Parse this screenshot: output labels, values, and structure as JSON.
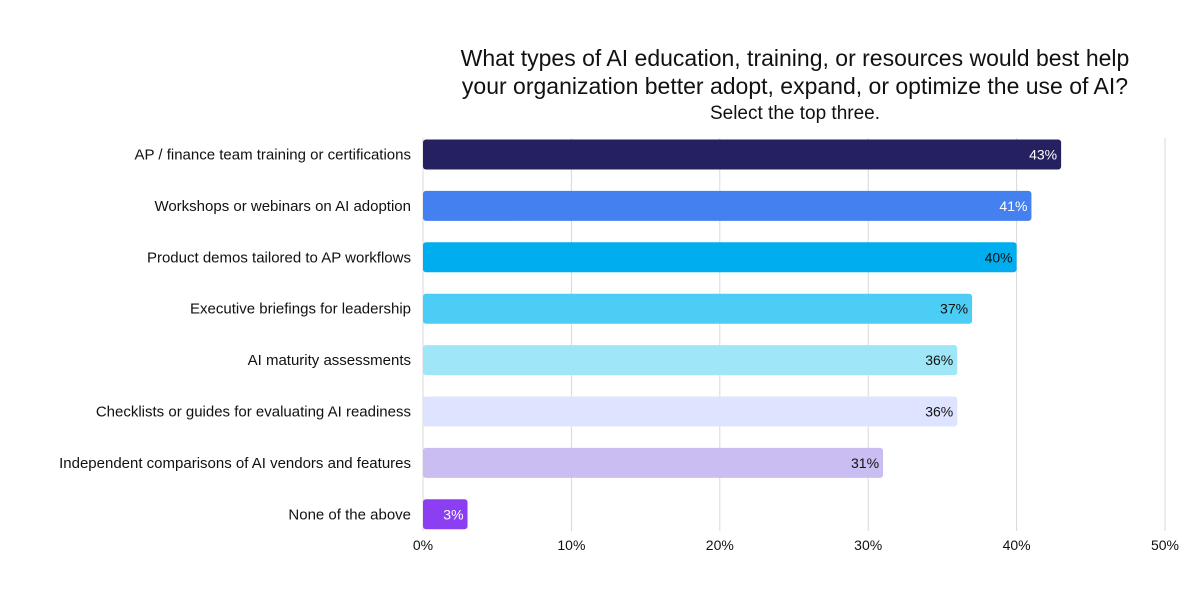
{
  "chart_data": {
    "type": "bar",
    "orientation": "horizontal",
    "title_lines": [
      "What types of AI education, training, or resources would best help",
      "your organization better adopt, expand, or optimize the use of AI?"
    ],
    "subtitle": "Select the top three.",
    "categories": [
      "AP / finance team training or certifications",
      "Workshops or webinars on AI adoption",
      "Product demos tailored to AP workflows",
      "Executive briefings for leadership",
      "AI maturity assessments",
      "Checklists or guides for evaluating AI readiness",
      "Independent comparisons of AI vendors and features",
      "None of the above"
    ],
    "values": [
      43,
      41,
      40,
      37,
      36,
      36,
      31,
      3
    ],
    "data_labels": [
      "43%",
      "41%",
      "40%",
      "37%",
      "36%",
      "36%",
      "31%",
      "3%"
    ],
    "bar_colors": [
      "#252060",
      "#4480F0",
      "#00AEEF",
      "#4CCDF5",
      "#9FE6F8",
      "#DEE4FF",
      "#CABDF2",
      "#8B3FF0"
    ],
    "label_colors": [
      "#ffffff",
      "#ffffff",
      "#111111",
      "#111111",
      "#111111",
      "#111111",
      "#111111",
      "#ffffff"
    ],
    "xlim": [
      0,
      50
    ],
    "x_ticks": [
      0,
      10,
      20,
      30,
      40,
      50
    ],
    "x_tick_labels": [
      "0%",
      "10%",
      "20%",
      "30%",
      "40%",
      "50%"
    ],
    "xlabel": "",
    "ylabel": "",
    "grid": "vertical",
    "legend": "none"
  }
}
